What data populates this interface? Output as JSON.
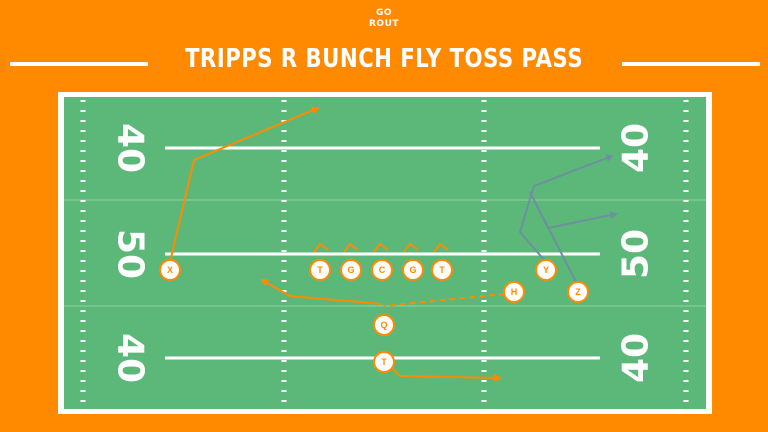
{
  "logo": {
    "line1": "GO",
    "line2": "ROUT"
  },
  "title": "TRIPPS R BUNCH FLY TOSS PASS",
  "colors": {
    "background": "#ff8a00",
    "field": "#5cb878",
    "field_border": "#ffffff",
    "route_orange": "#ff8a00",
    "route_gray": "#6e8fa0"
  },
  "yard_numbers": {
    "left": [
      "40",
      "50",
      "40"
    ],
    "right": [
      "40",
      "50",
      "40"
    ]
  },
  "players": [
    {
      "id": "x",
      "label": "X"
    },
    {
      "id": "t1",
      "label": "T"
    },
    {
      "id": "g1",
      "label": "G"
    },
    {
      "id": "c",
      "label": "C"
    },
    {
      "id": "g2",
      "label": "G"
    },
    {
      "id": "t2",
      "label": "T"
    },
    {
      "id": "q",
      "label": "Q"
    },
    {
      "id": "tb",
      "label": "T"
    },
    {
      "id": "h",
      "label": "H"
    },
    {
      "id": "y",
      "label": "Y"
    },
    {
      "id": "z",
      "label": "Z"
    }
  ]
}
